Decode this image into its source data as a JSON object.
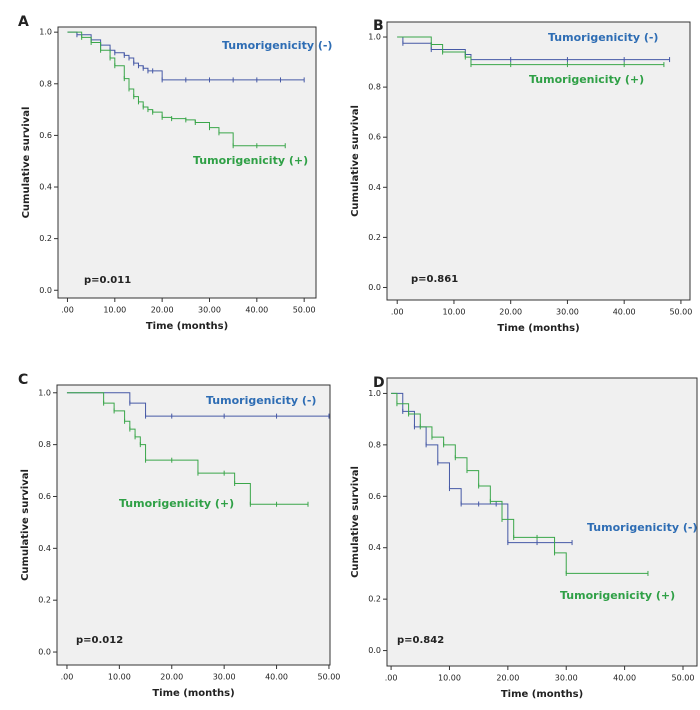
{
  "chart_data": [
    {
      "type": "step",
      "label": "A",
      "annotation": "p=0.011",
      "ylabel": "Cumulative survival",
      "xlabel": "Time (months)",
      "xlim": [
        -2,
        52.5
      ],
      "ylim": [
        -0.03,
        1.02
      ],
      "xticks": [
        {
          "value": 0,
          "label": ".00"
        },
        {
          "value": 10,
          "label": "10.00"
        },
        {
          "value": 20,
          "label": "20.00"
        },
        {
          "value": 30,
          "label": "30.00"
        },
        {
          "value": 40,
          "label": "40.00"
        },
        {
          "value": 50,
          "label": "50.00"
        }
      ],
      "yticks": [
        {
          "value": 0,
          "label": "0.0"
        },
        0.2,
        0.4,
        0.6,
        0.8,
        {
          "value": 1,
          "label": "1.0"
        }
      ],
      "series": [
        {
          "name": "Tumorigenicity (-)",
          "color": "#2e6db4",
          "line_color": "#4659a6",
          "x": [
            0,
            2,
            5,
            7,
            9,
            10,
            12,
            13,
            14,
            15,
            16,
            17,
            18,
            20,
            25,
            30,
            35,
            40,
            45,
            50
          ],
          "values": [
            1,
            0.99,
            0.97,
            0.95,
            0.93,
            0.92,
            0.91,
            0.9,
            0.88,
            0.87,
            0.86,
            0.85,
            0.85,
            0.815,
            0.815,
            0.815,
            0.815,
            0.815,
            0.815,
            0.815
          ]
        },
        {
          "name": "Tumorigenicity (+)",
          "color": "#2fa046",
          "line_color": "#3aa64a",
          "x": [
            0,
            3,
            5,
            7,
            9,
            10,
            12,
            13,
            14,
            15,
            16,
            17,
            18,
            20,
            22,
            25,
            27,
            30,
            32,
            35,
            40,
            46
          ],
          "values": [
            1,
            0.98,
            0.96,
            0.93,
            0.9,
            0.87,
            0.82,
            0.78,
            0.75,
            0.73,
            0.71,
            0.7,
            0.69,
            0.67,
            0.665,
            0.66,
            0.65,
            0.63,
            0.61,
            0.56,
            0.56,
            0.56
          ]
        }
      ]
    },
    {
      "type": "step",
      "label": "B",
      "annotation": "p=0.861",
      "ylabel": "Cumulative survival",
      "xlabel": "Time (months)",
      "xlim": [
        -1.8,
        51.6
      ],
      "ylim": [
        -0.05,
        1.06
      ],
      "xticks": [
        {
          "value": 0,
          "label": ".00"
        },
        {
          "value": 10,
          "label": "10.00"
        },
        {
          "value": 20,
          "label": "20.00"
        },
        {
          "value": 30,
          "label": "30.00"
        },
        {
          "value": 40,
          "label": "40.00"
        },
        {
          "value": 50,
          "label": "50.00"
        }
      ],
      "yticks": [
        {
          "value": 0,
          "label": "0.0"
        },
        0.2,
        0.4,
        0.6,
        0.8,
        {
          "value": 1,
          "label": "1.0"
        }
      ],
      "series": [
        {
          "name": "Tumorigenicity (-)",
          "color": "#2e6db4",
          "line_color": "#4659a6",
          "x": [
            0,
            1,
            6,
            12,
            13,
            20,
            30,
            40,
            48
          ],
          "values": [
            1,
            0.975,
            0.95,
            0.93,
            0.91,
            0.91,
            0.91,
            0.91,
            0.91
          ]
        },
        {
          "name": "Tumorigenicity (+)",
          "color": "#2fa046",
          "line_color": "#3aa64a",
          "x": [
            0,
            6,
            8,
            12,
            13,
            20,
            30,
            40,
            47
          ],
          "values": [
            1,
            0.97,
            0.94,
            0.92,
            0.89,
            0.89,
            0.89,
            0.89,
            0.89
          ]
        }
      ]
    },
    {
      "type": "step",
      "label": "C",
      "annotation": "p=0.012",
      "ylabel": "Cumulative survival",
      "xlabel": "Time (months)",
      "xlim": [
        -1.9,
        50.2
      ],
      "ylim": [
        -0.05,
        1.03
      ],
      "xticks": [
        {
          "value": 0,
          "label": ".00"
        },
        {
          "value": 10,
          "label": "10.00"
        },
        {
          "value": 20,
          "label": "20.00"
        },
        {
          "value": 30,
          "label": "30.00"
        },
        {
          "value": 40,
          "label": "40.00"
        },
        {
          "value": 50,
          "label": "50.00"
        }
      ],
      "yticks": [
        {
          "value": 0,
          "label": "0.0"
        },
        0.2,
        0.4,
        0.6,
        0.8,
        {
          "value": 1,
          "label": "1.0"
        }
      ],
      "series": [
        {
          "name": "Tumorigenicity (-)",
          "color": "#2e6db4",
          "line_color": "#4659a6",
          "x": [
            0,
            12,
            15,
            20,
            30,
            40,
            50
          ],
          "values": [
            1,
            0.96,
            0.91,
            0.91,
            0.91,
            0.91,
            0.91
          ]
        },
        {
          "name": "Tumorigenicity (+)",
          "color": "#2fa046",
          "line_color": "#3aa64a",
          "x": [
            0,
            7,
            9,
            11,
            12,
            13,
            14,
            15,
            20,
            25,
            30,
            32,
            35,
            40,
            46
          ],
          "values": [
            1,
            0.96,
            0.93,
            0.89,
            0.86,
            0.83,
            0.8,
            0.74,
            0.74,
            0.69,
            0.69,
            0.65,
            0.57,
            0.57,
            0.57
          ]
        }
      ]
    },
    {
      "type": "step",
      "label": "D",
      "annotation": "p=0.842",
      "ylabel": "Cumulative survival",
      "xlabel": "Time (months)",
      "xlim": [
        -0.7,
        52.4
      ],
      "ylim": [
        -0.06,
        1.06
      ],
      "xticks": [
        {
          "value": 0,
          "label": ".00"
        },
        {
          "value": 10,
          "label": "10.00"
        },
        {
          "value": 20,
          "label": "20.00"
        },
        {
          "value": 30,
          "label": "30.00"
        },
        {
          "value": 40,
          "label": "40.00"
        },
        {
          "value": 50,
          "label": "50.00"
        }
      ],
      "yticks": [
        {
          "value": 0,
          "label": "0.0"
        },
        0.2,
        0.4,
        0.6,
        0.8,
        {
          "value": 1,
          "label": "1.0"
        }
      ],
      "series": [
        {
          "name": "Tumorigenicity (-)",
          "color": "#2e6db4",
          "line_color": "#4659a6",
          "x": [
            0,
            2,
            4,
            6,
            8,
            10,
            12,
            15,
            18,
            20,
            25,
            31
          ],
          "values": [
            1,
            0.93,
            0.87,
            0.8,
            0.73,
            0.63,
            0.57,
            0.57,
            0.57,
            0.42,
            0.42,
            0.42
          ]
        },
        {
          "name": "Tumorigenicity (+)",
          "color": "#2fa046",
          "line_color": "#3aa64a",
          "x": [
            0,
            1,
            3,
            5,
            7,
            9,
            11,
            13,
            15,
            17,
            19,
            21,
            25,
            28,
            30,
            44
          ],
          "values": [
            1,
            0.96,
            0.92,
            0.87,
            0.83,
            0.8,
            0.75,
            0.7,
            0.64,
            0.58,
            0.51,
            0.44,
            0.44,
            0.38,
            0.3,
            0.3
          ]
        }
      ]
    }
  ]
}
